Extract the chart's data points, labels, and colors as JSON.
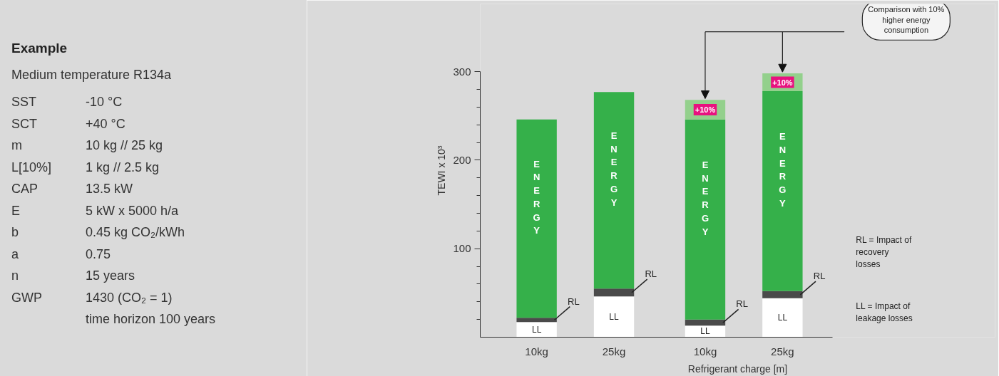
{
  "chart_data": [
    {
      "type": "other",
      "title": "Example",
      "subtitle": "Medium temperature R134a",
      "annotations": [
        "SST",
        "-10 °C",
        "SCT",
        "+40 °C",
        "m",
        "10 kg // 25 kg",
        "L[10%]",
        "1 kg // 2.5 kg",
        "CAP",
        "13.5 kW",
        "E",
        "5 kW x 5000 h/a",
        "b",
        "0.45 kg CO₂/kWh",
        "a",
        "0.75",
        "n",
        "15 years",
        "GWP",
        "1430 (CO₂ = 1)",
        "time horizon 100 years"
      ]
    },
    {
      "type": "bar",
      "stacked": true,
      "categories": [
        "10kg",
        "25kg",
        "10kg",
        "25kg"
      ],
      "xlabel": "Refrigerant charge [m]",
      "ylabel": "TEWI x 10³",
      "ylim": [
        0,
        300
      ],
      "yticks": [
        {
          "value": 20,
          "label": null
        },
        {
          "value": 40,
          "label": null
        },
        {
          "value": 60,
          "label": null
        },
        {
          "value": 80,
          "label": null
        },
        100,
        {
          "value": 120,
          "label": null
        },
        {
          "value": 140,
          "label": null
        },
        {
          "value": 160,
          "label": null
        },
        {
          "value": 180,
          "label": null
        },
        200,
        {
          "value": 220,
          "label": null
        },
        {
          "value": 240,
          "label": null
        },
        {
          "value": 260,
          "label": null
        },
        {
          "value": 280,
          "label": null
        },
        300
      ],
      "series": [
        {
          "name": "LL",
          "color": "#ffffff",
          "values": [
            17,
            46,
            13,
            44
          ]
        },
        {
          "name": "RL",
          "color": "#4a4a4a",
          "values": [
            5,
            9,
            7,
            8
          ]
        },
        {
          "name": "ENERGY",
          "color": "#35b04a",
          "values": [
            224,
            222,
            226,
            226
          ]
        },
        {
          "name": "+10%",
          "color": "#93d08c",
          "values": [
            null,
            null,
            22,
            20
          ]
        }
      ],
      "annotations": [
        "Comparison with 10% higher energy consumption",
        "RL = Impact of recovery losses",
        "LL = Impact of leakage losses"
      ],
      "grid": false
    }
  ]
}
